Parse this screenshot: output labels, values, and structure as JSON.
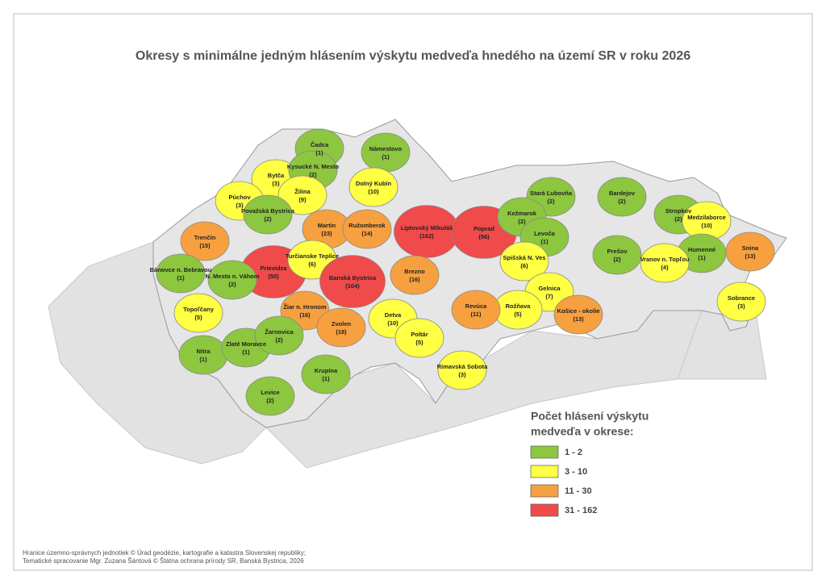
{
  "title": "Okresy s minimálne jedným hlásením výskytu medveďa hnedého na území SR v roku 2026",
  "districts": [
    {
      "name": "Čadca",
      "count": "(1)",
      "color": "#8dc63f"
    },
    {
      "name": "Námestovo",
      "count": "(1)",
      "color": "#8dc63f"
    },
    {
      "name": "Bytča",
      "count": "(3)",
      "color": "#ffff44"
    },
    {
      "name": "Kysucké N. Mesto",
      "count": "(2)",
      "color": "#8dc63f"
    },
    {
      "name": "Dolný Kubín",
      "count": "(10)",
      "color": "#ffff44"
    },
    {
      "name": "Púchov",
      "count": "(3)",
      "color": "#ffff44"
    },
    {
      "name": "Žilina",
      "count": "(9)",
      "color": "#ffff44"
    },
    {
      "name": "Považská Bystrica",
      "count": "(2)",
      "color": "#8dc63f"
    },
    {
      "name": "Martin",
      "count": "(23)",
      "color": "#f7a040"
    },
    {
      "name": "Ružomberok",
      "count": "(14)",
      "color": "#f7a040"
    },
    {
      "name": "Liptovský Mikuláš",
      "count": "(162)",
      "color": "#f04a4a"
    },
    {
      "name": "Poprad",
      "count": "(56)",
      "color": "#f04a4a"
    },
    {
      "name": "Stará Ľubovňa",
      "count": "(2)",
      "color": "#8dc63f"
    },
    {
      "name": "Bardejov",
      "count": "(2)",
      "color": "#8dc63f"
    },
    {
      "name": "Kežmarok",
      "count": "(2)",
      "color": "#8dc63f"
    },
    {
      "name": "Levoča",
      "count": "(1)",
      "color": "#8dc63f"
    },
    {
      "name": "Stropkov",
      "count": "(2)",
      "color": "#8dc63f"
    },
    {
      "name": "Medzilaborce",
      "count": "(10)",
      "color": "#ffff44"
    },
    {
      "name": "Humenné",
      "count": "(1)",
      "color": "#8dc63f"
    },
    {
      "name": "Snina",
      "count": "(13)",
      "color": "#f7a040"
    },
    {
      "name": "Vranov n. Topľou",
      "count": "(4)",
      "color": "#ffff44"
    },
    {
      "name": "Prešov",
      "count": "(2)",
      "color": "#8dc63f"
    },
    {
      "name": "Trenčín",
      "count": "(15)",
      "color": "#f7a040"
    },
    {
      "name": "Prievidza",
      "count": "(50)",
      "color": "#f04a4a"
    },
    {
      "name": "Turčianske Teplice",
      "count": "(6)",
      "color": "#ffff44"
    },
    {
      "name": "Bánovce n. Bebravou",
      "count": "(1)",
      "color": "#8dc63f"
    },
    {
      "name": "N. Mesto n. Váhom",
      "count": "(2)",
      "color": "#8dc63f"
    },
    {
      "name": "Banská Bystrica",
      "count": "(104)",
      "color": "#f04a4a"
    },
    {
      "name": "Brezno",
      "count": "(16)",
      "color": "#f7a040"
    },
    {
      "name": "Spišská N. Ves",
      "count": "(6)",
      "color": "#ffff44"
    },
    {
      "name": "Gelnica",
      "count": "(7)",
      "color": "#ffff44"
    },
    {
      "name": "Rožňava",
      "count": "(5)",
      "color": "#ffff44"
    },
    {
      "name": "Košice - okolie",
      "count": "(13)",
      "color": "#f7a040"
    },
    {
      "name": "Sobrance",
      "count": "(3)",
      "color": "#ffff44"
    },
    {
      "name": "Revúca",
      "count": "(11)",
      "color": "#f7a040"
    },
    {
      "name": "Topoľčany",
      "count": "(5)",
      "color": "#ffff44"
    },
    {
      "name": "Žiar n. Hronom",
      "count": "(16)",
      "color": "#f7a040"
    },
    {
      "name": "Zvolen",
      "count": "(18)",
      "color": "#f7a040"
    },
    {
      "name": "Detva",
      "count": "(10)",
      "color": "#ffff44"
    },
    {
      "name": "Poltár",
      "count": "(5)",
      "color": "#ffff44"
    },
    {
      "name": "Rimavská Sobota",
      "count": "(3)",
      "color": "#ffff44"
    },
    {
      "name": "Nitra",
      "count": "(1)",
      "color": "#8dc63f"
    },
    {
      "name": "Zlaté Moravce",
      "count": "(1)",
      "color": "#8dc63f"
    },
    {
      "name": "Žarnovica",
      "count": "(2)",
      "color": "#8dc63f"
    },
    {
      "name": "Krupina",
      "count": "(1)",
      "color": "#8dc63f"
    },
    {
      "name": "Levice",
      "count": "(2)",
      "color": "#8dc63f"
    }
  ],
  "legend": {
    "title_lines": [
      "Počet hlásení výskytu",
      "medveďa v okrese:"
    ],
    "items": [
      {
        "label": "1 - 2",
        "color": "#8dc63f"
      },
      {
        "label": "3 - 10",
        "color": "#ffff44"
      },
      {
        "label": "11 - 30",
        "color": "#f7a040"
      },
      {
        "label": "31 - 162",
        "color": "#f04a4a"
      }
    ]
  },
  "footer": [
    "Hranice územno-správnych jednotiek © Úrad geodézie, kartografie a katastra Slovenskej republiky;",
    "Tematické spracovanie Mgr. Zuzana Šántová © Štátna ochrana prírody SR, Banská Bystrica, 2026"
  ]
}
